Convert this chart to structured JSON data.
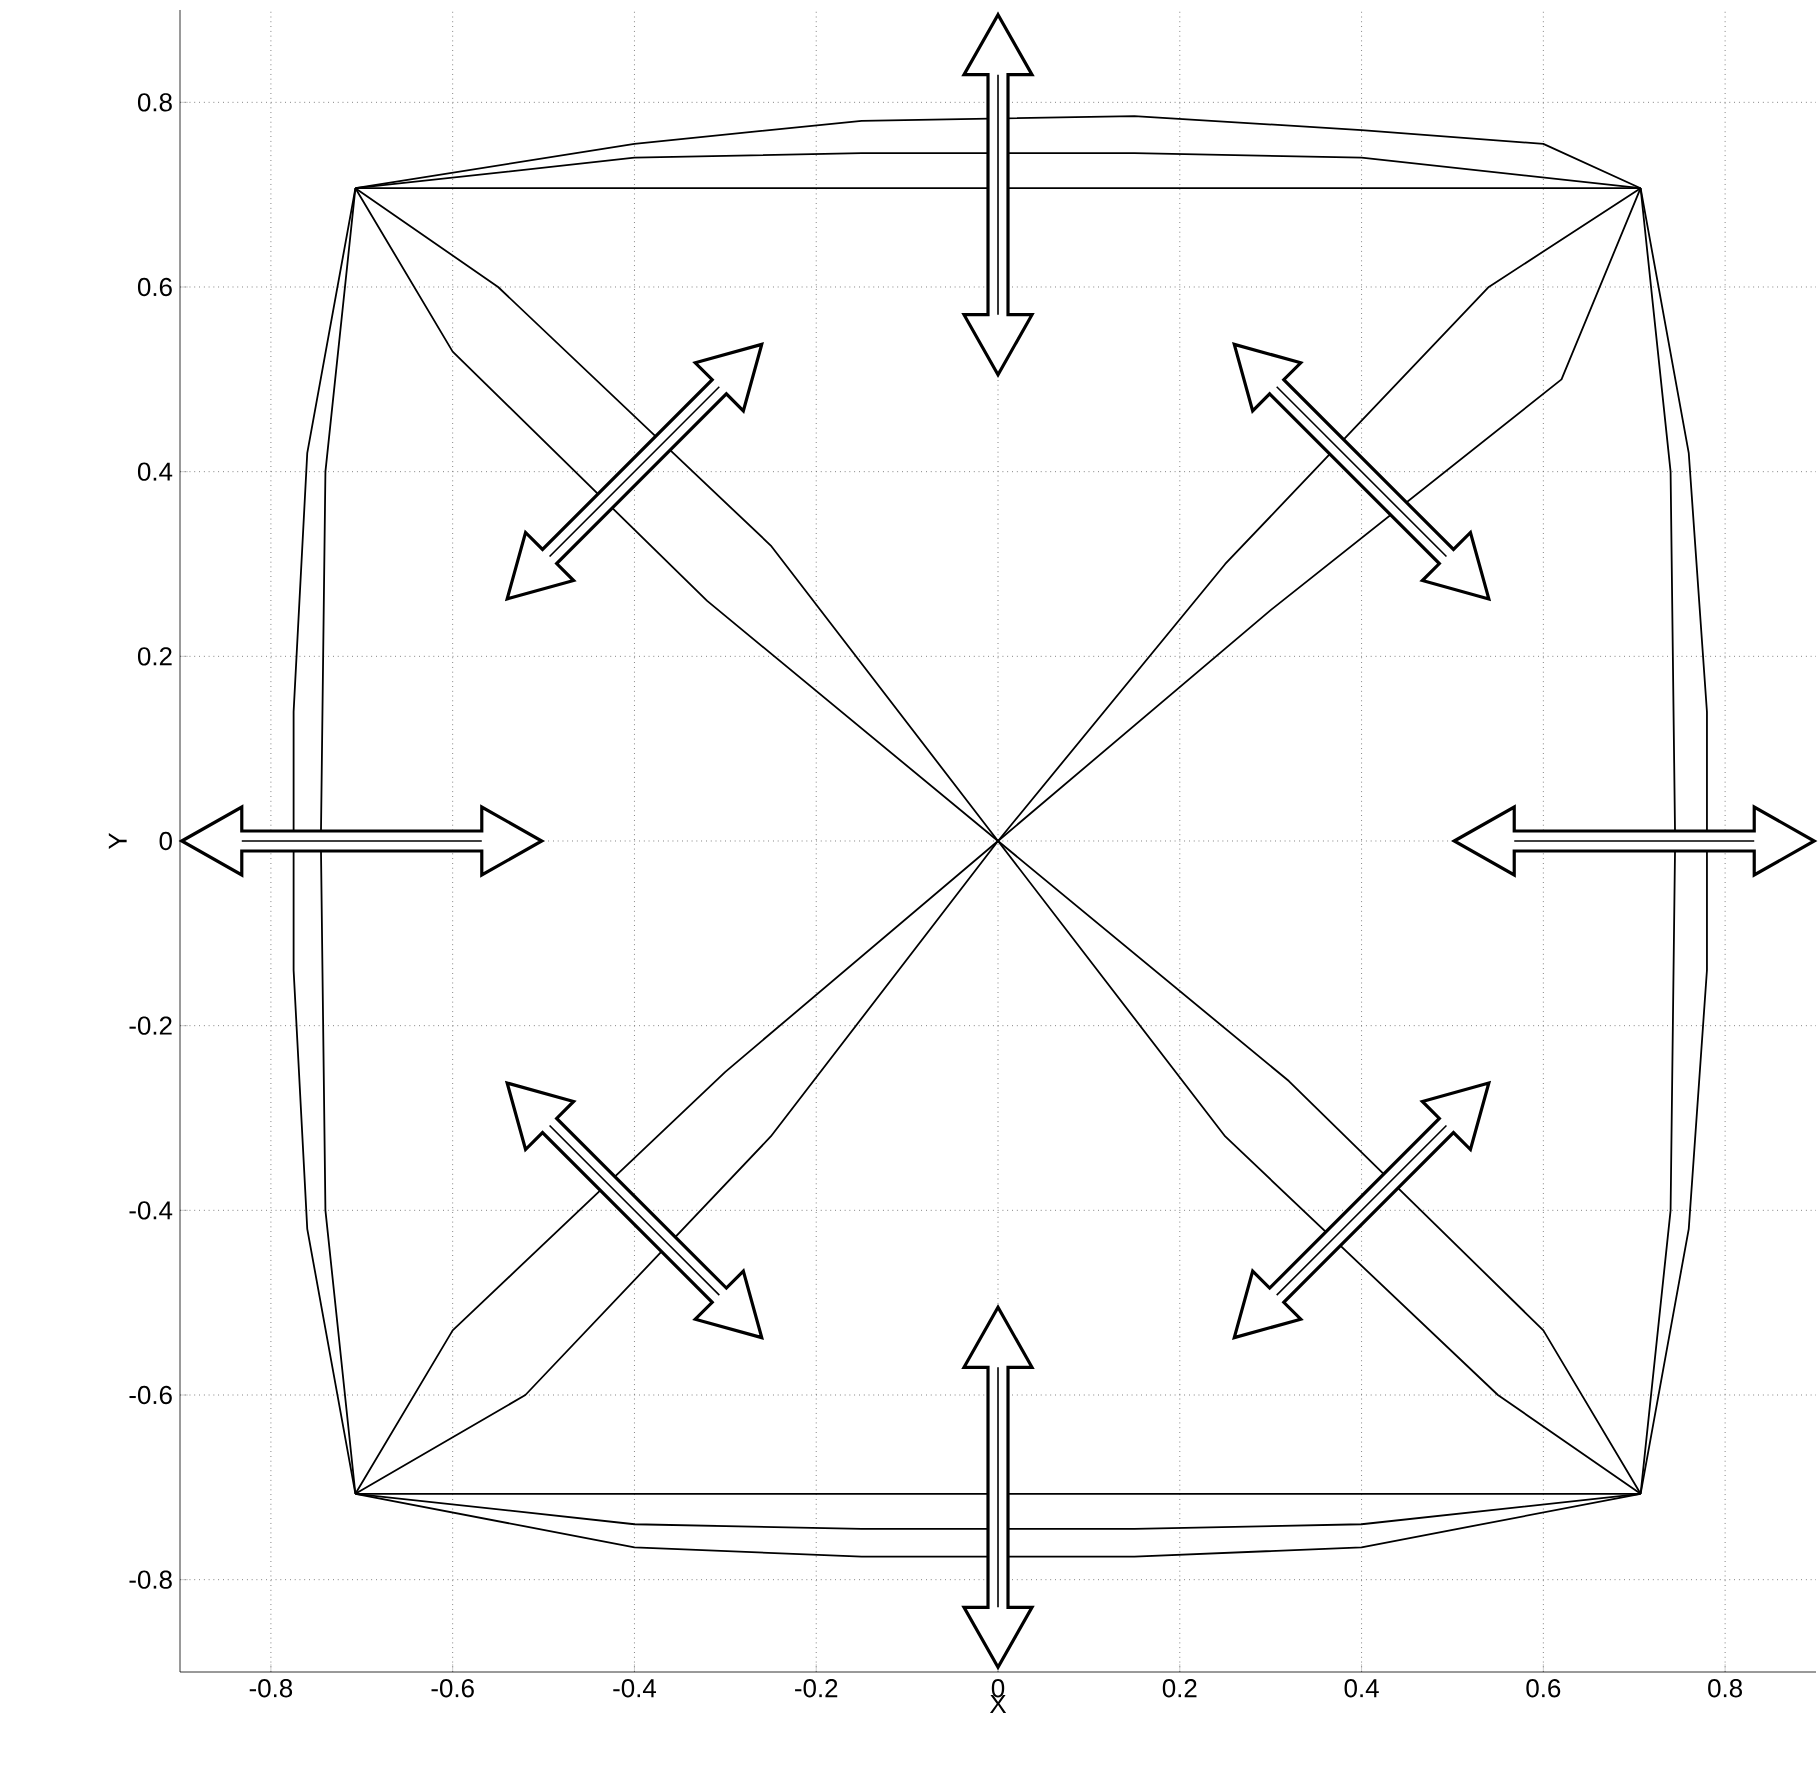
{
  "chart_data": {
    "type": "line",
    "xlabel": "X",
    "ylabel": "Y",
    "xlim": [
      -0.9,
      0.9
    ],
    "ylim": [
      -0.9,
      0.9
    ],
    "xticks": [
      -0.8,
      -0.6,
      -0.4,
      -0.2,
      0,
      0.2,
      0.4,
      0.6,
      0.8
    ],
    "yticks": [
      -0.8,
      -0.6,
      -0.4,
      -0.2,
      0,
      0.2,
      0.4,
      0.6,
      0.8
    ],
    "grid": true,
    "marker": "none",
    "line_style": "solid",
    "series": [
      {
        "color": "#000000",
        "x": [
          -0.707,
          -0.4,
          -0.15,
          0.15,
          0.4,
          0.6,
          0.707
        ],
        "values": [
          0.707,
          0.755,
          0.78,
          0.785,
          0.77,
          0.755,
          0.707
        ]
      },
      {
        "color": "#000000",
        "x": [
          0.707,
          0.76,
          0.78,
          0.78,
          0.76,
          0.707
        ],
        "values": [
          0.707,
          0.42,
          0.14,
          -0.14,
          -0.42,
          -0.707
        ]
      },
      {
        "color": "#000000",
        "x": [
          -0.707,
          -0.4,
          -0.15,
          0.15,
          0.4,
          0.707
        ],
        "values": [
          -0.707,
          -0.765,
          -0.775,
          -0.775,
          -0.765,
          -0.707
        ]
      },
      {
        "color": "#000000",
        "x": [
          -0.707,
          -0.76,
          -0.775,
          -0.775,
          -0.76,
          -0.707
        ],
        "values": [
          0.707,
          0.42,
          0.14,
          -0.14,
          -0.42,
          -0.707
        ]
      },
      {
        "color": "#000000",
        "x": [
          -0.707,
          -0.4,
          -0.15,
          0.15,
          0.4,
          0.707
        ],
        "values": [
          0.707,
          0.74,
          0.745,
          0.745,
          0.74,
          0.707
        ]
      },
      {
        "color": "#000000",
        "x": [
          -0.707,
          -0.4,
          -0.15,
          0.15,
          0.4,
          0.707
        ],
        "values": [
          -0.707,
          -0.74,
          -0.745,
          -0.745,
          -0.74,
          -0.707
        ]
      },
      {
        "color": "#000000",
        "x": [
          0.707,
          0.74,
          0.745,
          0.74,
          0.707
        ],
        "values": [
          0.707,
          0.4,
          0,
          -0.4,
          -0.707
        ]
      },
      {
        "color": "#000000",
        "x": [
          -0.707,
          -0.74,
          -0.745,
          -0.74,
          -0.707
        ],
        "values": [
          0.707,
          0.4,
          0,
          -0.4,
          -0.707
        ]
      },
      {
        "color": "#000000",
        "x": [
          -0.707,
          0.707
        ],
        "values": [
          0.707,
          0.707
        ]
      },
      {
        "color": "#000000",
        "x": [
          -0.707,
          0.707
        ],
        "values": [
          -0.707,
          -0.707
        ]
      },
      {
        "color": "#000000",
        "x": [
          -0.707,
          -0.55,
          -0.25,
          0,
          0.25,
          0.55,
          0.707
        ],
        "values": [
          0.707,
          0.6,
          0.32,
          0,
          -0.32,
          -0.6,
          -0.707
        ]
      },
      {
        "color": "#000000",
        "x": [
          -0.707,
          -0.6,
          -0.32,
          0,
          0.32,
          0.6,
          0.707
        ],
        "values": [
          0.707,
          0.53,
          0.26,
          0,
          -0.26,
          -0.53,
          -0.707
        ]
      },
      {
        "color": "#000000",
        "x": [
          -0.707,
          -0.6,
          -0.3,
          0,
          0.3,
          0.62,
          0.707
        ],
        "values": [
          -0.707,
          -0.53,
          -0.25,
          0,
          0.25,
          0.5,
          0.707
        ]
      },
      {
        "color": "#000000",
        "x": [
          -0.707,
          -0.52,
          -0.25,
          0,
          0.25,
          0.54,
          0.707
        ],
        "values": [
          -0.707,
          -0.6,
          -0.32,
          0,
          0.3,
          0.6,
          0.707
        ]
      }
    ]
  }
}
